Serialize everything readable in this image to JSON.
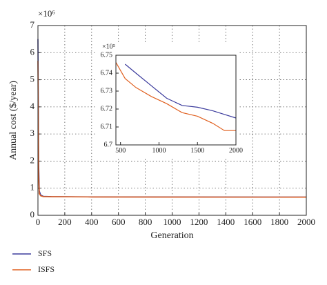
{
  "chart_data": [
    {
      "type": "line",
      "y_multiplier": "×10⁶",
      "x_label": "Generation",
      "y_label": "Annual cost ($/year)",
      "x": [
        0,
        5,
        10,
        20,
        40,
        100,
        400,
        1000,
        2000
      ],
      "series": [
        {
          "name": "SFS",
          "color": "#3a3a9c",
          "values": [
            6.5,
            2,
            0.9,
            0.75,
            0.7,
            0.69,
            0.68,
            0.675,
            0.672
          ]
        },
        {
          "name": "ISFS",
          "color": "#e06020",
          "values": [
            5.7,
            1.5,
            0.8,
            0.72,
            0.69,
            0.685,
            0.677,
            0.673,
            0.671
          ]
        }
      ],
      "xlim": [
        0,
        2000
      ],
      "xticks": [
        0,
        200,
        400,
        600,
        800,
        1000,
        1200,
        1400,
        1600,
        1800,
        2000
      ],
      "ylim": [
        0,
        7
      ],
      "yticks": [
        0,
        1,
        2,
        3,
        4,
        5,
        6,
        7
      ],
      "grid": true,
      "legend": "below-left"
    },
    {
      "type": "line",
      "y_multiplier": "×10⁵",
      "x": [
        440,
        560,
        700,
        900,
        1100,
        1300,
        1500,
        1700,
        1850,
        2000
      ],
      "series": [
        {
          "color": "#3a3a9c",
          "values": [
            null,
            6.745,
            6.74,
            6.733,
            6.726,
            6.722,
            6.721,
            6.719,
            6.717,
            6.715
          ]
        },
        {
          "color": "#e06020",
          "values": [
            6.746,
            6.737,
            6.732,
            6.727,
            6.723,
            6.718,
            6.716,
            6.712,
            6.708,
            6.708
          ]
        }
      ],
      "xlim": [
        440,
        2000
      ],
      "xticks": [
        500,
        1000,
        1500,
        2000
      ],
      "ylim": [
        6.7,
        6.75
      ],
      "yticks": [
        6.7,
        6.71,
        6.72,
        6.73,
        6.74,
        6.75
      ],
      "grid": false
    }
  ]
}
